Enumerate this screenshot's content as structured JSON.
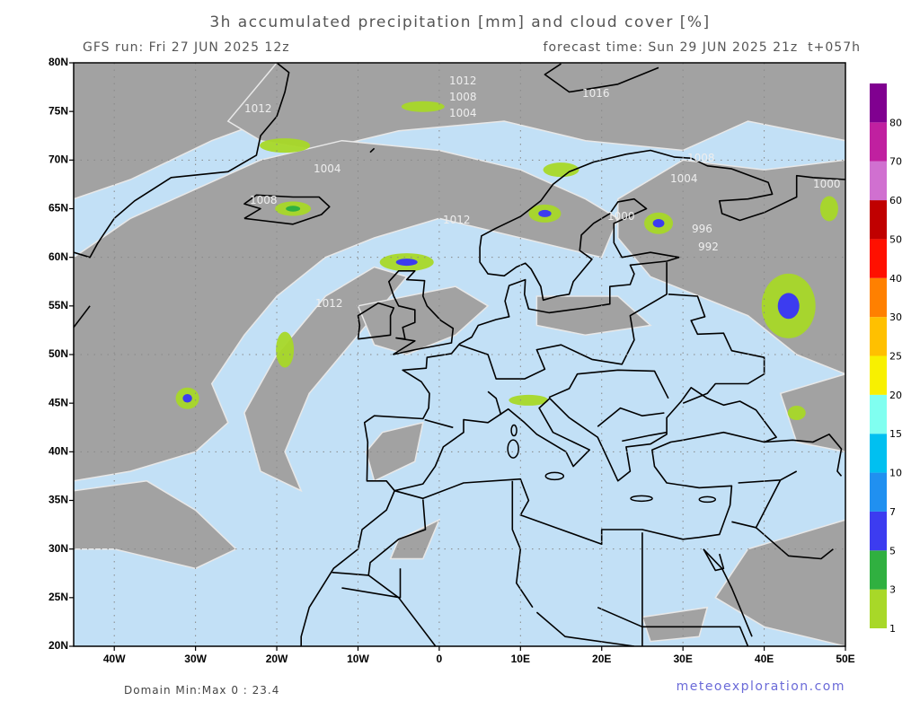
{
  "header": {
    "title": "3h accumulated precipitation [mm] and cloud cover [%]",
    "run": "GFS run: Fri 27 JUN 2025 12z",
    "forecast": "forecast time: Sun 29 JUN 2025 21z  t+057h"
  },
  "chart_data": {
    "type": "map",
    "xlim": [
      -45,
      50
    ],
    "ylim": [
      20,
      80
    ],
    "xticks": [
      {
        "value": -40,
        "label": "40W"
      },
      {
        "value": -30,
        "label": "30W"
      },
      {
        "value": -20,
        "label": "20W"
      },
      {
        "value": -10,
        "label": "10W"
      },
      0,
      {
        "value": 10,
        "label": "10E"
      },
      {
        "value": 20,
        "label": "20E"
      },
      {
        "value": 30,
        "label": "30E"
      },
      {
        "value": 40,
        "label": "40E"
      },
      {
        "value": 50,
        "label": "50E"
      }
    ],
    "yticks": [
      {
        "value": 20,
        "label": "20N"
      },
      {
        "value": 25,
        "label": "25N"
      },
      {
        "value": 30,
        "label": "30N"
      },
      {
        "value": 35,
        "label": "35N"
      },
      {
        "value": 40,
        "label": "40N"
      },
      {
        "value": 45,
        "label": "45N"
      },
      {
        "value": 50,
        "label": "50N"
      },
      {
        "value": 55,
        "label": "55N"
      },
      {
        "value": 60,
        "label": "60N"
      },
      {
        "value": 65,
        "label": "65N"
      },
      {
        "value": 70,
        "label": "70N"
      },
      {
        "value": 75,
        "label": "75N"
      },
      {
        "value": 80,
        "label": "80N"
      }
    ],
    "grid": true,
    "isobar_labels": [
      "1012",
      "1012",
      "1008",
      "1004",
      "1016",
      "1004",
      "1008",
      "1004",
      "1012",
      "1008",
      "1000",
      "996",
      "992",
      "1000",
      "1012"
    ]
  },
  "colorbar": {
    "levels": [
      1,
      3,
      5,
      7,
      10,
      15,
      20,
      25,
      30,
      40,
      50,
      60,
      70,
      80
    ],
    "colors": [
      "#a8d828",
      "#30b040",
      "#3c3cf0",
      "#2090f0",
      "#00c0f0",
      "#80fff0",
      "#f8f000",
      "#ffc000",
      "#ff8000",
      "#ff1000",
      "#c00000",
      "#d070d0",
      "#c020a0",
      "#800090"
    ]
  },
  "footer": {
    "stats": "Domain Min:Max 0 : 23.4",
    "brand": "meteoexploration.com"
  }
}
